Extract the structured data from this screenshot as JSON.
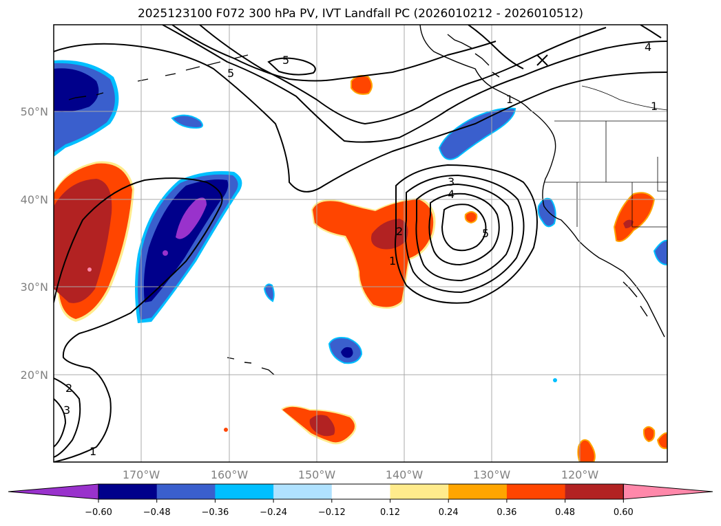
{
  "title": "2025123100 F072 300 hPa PV, IVT Landfall PC (2026010212 - 2026010512)",
  "lat_labels": [
    "50°N",
    "40°N",
    "30°N",
    "20°N"
  ],
  "lon_labels": [
    "170°W",
    "160°W",
    "150°W",
    "140°W",
    "130°W",
    "120°W"
  ],
  "colorbar": {
    "ticks": [
      "−0.60",
      "−0.48",
      "−0.36",
      "−0.24",
      "−0.12",
      "0.12",
      "0.24",
      "0.36",
      "0.48",
      "0.60"
    ],
    "colors": [
      "#9932cc",
      "#00008b",
      "#3a5fcd",
      "#00bfff",
      "#b0e2ff",
      "#ffffff",
      "#ffeb8c",
      "#ffa500",
      "#ff4500",
      "#b22222",
      "#ff88aa"
    ]
  },
  "contour_labels": [
    "5",
    "5",
    "4",
    "1",
    "3",
    "4",
    "5",
    "2",
    "1",
    "2",
    "3",
    "1",
    "1"
  ],
  "colors": {
    "land_border": "#000000",
    "grid": "#a9a9a9",
    "contour": "#000000"
  }
}
